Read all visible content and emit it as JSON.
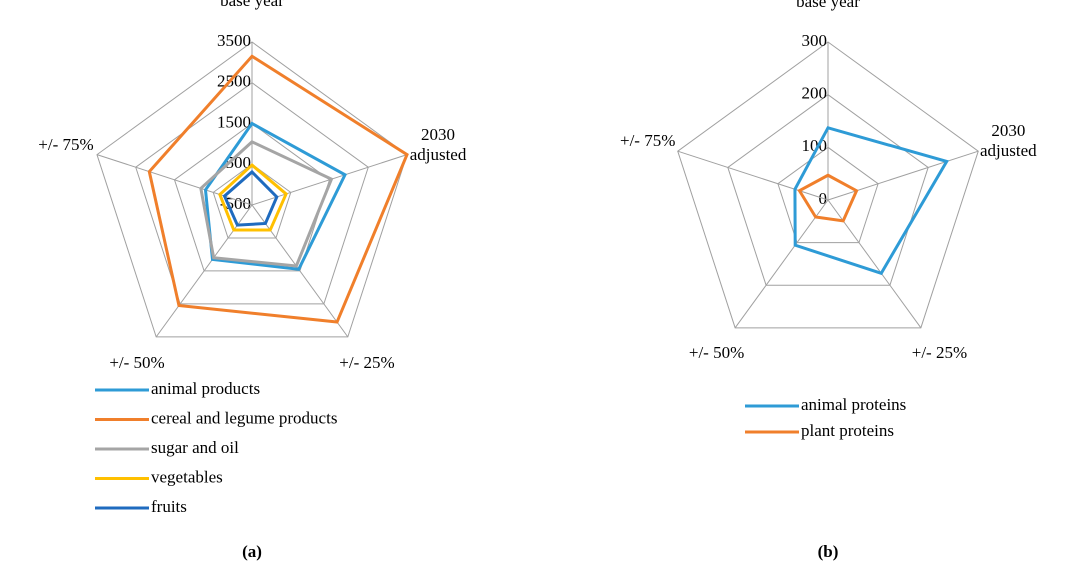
{
  "chart_data": [
    {
      "type": "radar",
      "panel_label": "(a)",
      "categories": [
        "base year",
        "2030 adjusted",
        "+/- 25%",
        "+/- 50%",
        "+/- 75%"
      ],
      "ylim": [
        -500,
        3500
      ],
      "yticks": [
        -500,
        500,
        1500,
        2500,
        3500
      ],
      "series": [
        {
          "name": "animal products",
          "color": "#2e9bd6",
          "values": [
            1500,
            1900,
            1450,
            1150,
            700
          ]
        },
        {
          "name": "cereal and legume products",
          "color": "#f07f2b",
          "values": [
            3150,
            3500,
            3050,
            2550,
            2150
          ]
        },
        {
          "name": "sugar and oil",
          "color": "#a5a5a5",
          "values": [
            1050,
            1550,
            1350,
            1100,
            820
          ]
        },
        {
          "name": "vegetables",
          "color": "#ffc000",
          "values": [
            480,
            380,
            260,
            260,
            330
          ]
        },
        {
          "name": "fruits",
          "color": "#1f6bbf",
          "values": [
            310,
            140,
            60,
            110,
            210
          ]
        }
      ]
    },
    {
      "type": "radar",
      "panel_label": "(b)",
      "categories": [
        "base year",
        "2030 adjusted",
        "+/- 25%",
        "+/- 50%",
        "+/- 75%"
      ],
      "ylim": [
        0,
        300
      ],
      "yticks": [
        0,
        100,
        200,
        300
      ],
      "series": [
        {
          "name": "animal proteins",
          "color": "#2e9bd6",
          "values": [
            137,
            237,
            172,
            106,
            66
          ]
        },
        {
          "name": "plant proteins",
          "color": "#f07f2b",
          "values": [
            47,
            57,
            49,
            40,
            57
          ]
        }
      ]
    }
  ]
}
